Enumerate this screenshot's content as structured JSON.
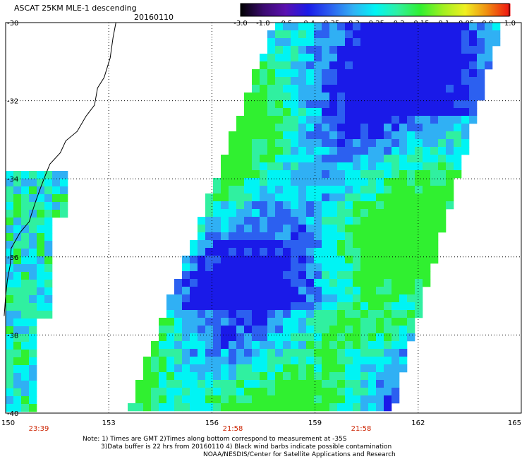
{
  "header": {
    "title": "ASCAT 25KM MLE-1 descending",
    "date": "20160110"
  },
  "colorbar": {
    "labels": [
      "-3.0",
      "-1.0",
      "-0.5",
      "-0.4",
      "-0.35",
      "-0.3",
      "-0.25",
      "-0.2",
      "-0.15",
      "-0.1",
      "-0.05",
      "0.0",
      "1.0"
    ],
    "colors": [
      "#000000",
      "#3a0a6e",
      "#5a10b0",
      "#1a1ae8",
      "#2c60f0",
      "#30b0f4",
      "#00f4f4",
      "#30f0a0",
      "#30f030",
      "#a0f020",
      "#f0f020",
      "#f08a10",
      "#f01010"
    ]
  },
  "map": {
    "lat_labels": [
      "-30",
      "-32",
      "-34",
      "-36",
      "-38",
      "-40"
    ],
    "lon_labels": [
      "150",
      "153",
      "156",
      "159",
      "162",
      "165"
    ],
    "pass_times": [
      "23:39",
      "21:58",
      "21:58"
    ],
    "time_color": "#cc2200"
  },
  "notes": {
    "line1": "Note: 1) Times are GMT 2)Times along bottom correspond to measurement at -35S",
    "line2": "3)Data buffer is 22 hrs from 20160110 4) Black wind barbs indicate possible contamination",
    "line3": "NOAA/NESDIS/Center for Satellite Applications and Research"
  }
}
